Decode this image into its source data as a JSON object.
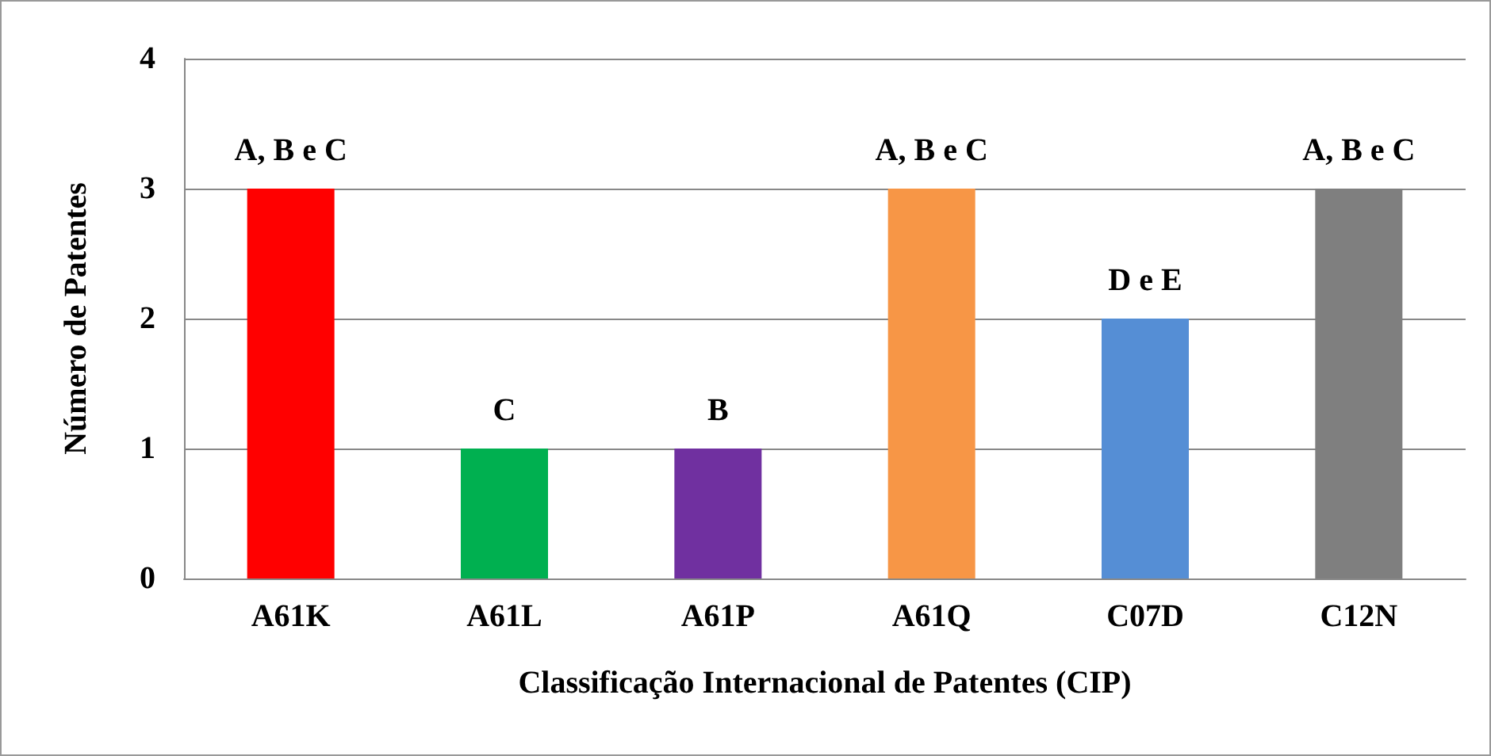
{
  "chart_data": {
    "type": "bar",
    "xlabel": "Classificação Internacional de Patentes (CIP)",
    "ylabel": "Número de Patentes",
    "categories": [
      "A61K",
      "A61L",
      "A61P",
      "A61Q",
      "C07D",
      "C12N"
    ],
    "values": [
      3,
      1,
      1,
      3,
      2,
      3
    ],
    "colors": [
      "#ff0000",
      "#00b050",
      "#7030a0",
      "#f79646",
      "#558ed5",
      "#7f7f7f"
    ],
    "value_labels": [
      "A, B e C",
      "C",
      "B",
      "A, B e C",
      "D e E",
      "A, B e C"
    ],
    "ylim": [
      0,
      4
    ],
    "yticks": [
      0,
      1,
      2,
      3,
      4
    ],
    "grid": "y"
  }
}
